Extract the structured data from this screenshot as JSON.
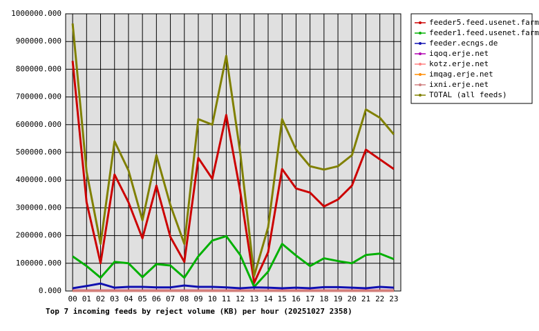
{
  "chart_data": {
    "type": "line",
    "title": "Top 7 incoming feeds by reject volume (KB) per hour (20251027 2358)",
    "categories": [
      "00",
      "01",
      "02",
      "03",
      "04",
      "05",
      "06",
      "07",
      "08",
      "09",
      "10",
      "11",
      "12",
      "13",
      "14",
      "15",
      "16",
      "17",
      "18",
      "19",
      "20",
      "21",
      "22",
      "23"
    ],
    "series": [
      {
        "name": "feeder5.feed.usenet.farm",
        "color": "#cc0000",
        "values": [
          830000,
          320000,
          100000,
          420000,
          320000,
          190000,
          380000,
          195000,
          105000,
          480000,
          405000,
          635000,
          360000,
          30000,
          140000,
          440000,
          370000,
          355000,
          305000,
          330000,
          380000,
          510000,
          475000,
          440000
        ]
      },
      {
        "name": "feeder1.feed.usenet.farm",
        "color": "#00b000",
        "values": [
          125000,
          90000,
          48000,
          105000,
          100000,
          50000,
          97000,
          92000,
          48000,
          125000,
          182000,
          198000,
          130000,
          15000,
          70000,
          170000,
          128000,
          90000,
          118000,
          108000,
          100000,
          130000,
          135000,
          115000
        ]
      },
      {
        "name": "feeder.ecngs.de",
        "color": "#1010b0",
        "values": [
          10000,
          18000,
          27000,
          12000,
          15000,
          15000,
          13000,
          13000,
          20000,
          15000,
          15000,
          13000,
          10000,
          13000,
          12000,
          10000,
          12000,
          10000,
          14000,
          14000,
          12000,
          10000,
          15000,
          12000
        ]
      },
      {
        "name": "iqoq.erje.net",
        "color": "#b000b0",
        "values": [
          2000,
          2000,
          2000,
          2000,
          2000,
          2000,
          2000,
          2000,
          2000,
          2000,
          2000,
          2000,
          2000,
          2000,
          2000,
          2000,
          2000,
          2000,
          2000,
          2000,
          2000,
          2000,
          2000,
          2000
        ]
      },
      {
        "name": "kotz.erje.net",
        "color": "#ff8080",
        "values": [
          1000,
          1000,
          1000,
          1000,
          1000,
          1000,
          1000,
          1000,
          1000,
          1000,
          1000,
          1000,
          1000,
          1000,
          1000,
          1000,
          1000,
          1000,
          1000,
          1000,
          1000,
          1000,
          1000,
          1000
        ]
      },
      {
        "name": "imqag.erje.net",
        "color": "#ff8c00",
        "values": [
          500,
          500,
          500,
          500,
          500,
          500,
          500,
          500,
          500,
          500,
          500,
          500,
          500,
          500,
          500,
          500,
          500,
          500,
          500,
          500,
          500,
          500,
          500,
          500
        ]
      },
      {
        "name": "ixni.erje.net",
        "color": "#d08080",
        "values": [
          300,
          300,
          300,
          300,
          300,
          300,
          300,
          300,
          300,
          300,
          300,
          300,
          300,
          300,
          300,
          300,
          300,
          300,
          300,
          300,
          300,
          300,
          300,
          300
        ]
      },
      {
        "name": "TOTAL (all feeds)",
        "color": "#808000",
        "values": [
          965000,
          430000,
          170000,
          540000,
          435000,
          255000,
          490000,
          310000,
          170000,
          620000,
          600000,
          848000,
          500000,
          55000,
          230000,
          620000,
          510000,
          450000,
          438000,
          450000,
          490000,
          655000,
          625000,
          565000
        ]
      }
    ],
    "ylim": [
      0,
      1000000
    ],
    "yticks": [
      {
        "value": 0,
        "label": "0.000"
      },
      {
        "value": 100000,
        "label": "100000.000"
      },
      {
        "value": 200000,
        "label": "200000.000"
      },
      {
        "value": 300000,
        "label": "300000.000"
      },
      {
        "value": 400000,
        "label": "400000.000"
      },
      {
        "value": 500000,
        "label": "500000.000"
      },
      {
        "value": 600000,
        "label": "600000.000"
      },
      {
        "value": 700000,
        "label": "700000.000"
      },
      {
        "value": 800000,
        "label": "800000.000"
      },
      {
        "value": 900000,
        "label": "900000.000"
      },
      {
        "value": 1000000,
        "label": "1000000.000"
      }
    ],
    "grid": true
  }
}
